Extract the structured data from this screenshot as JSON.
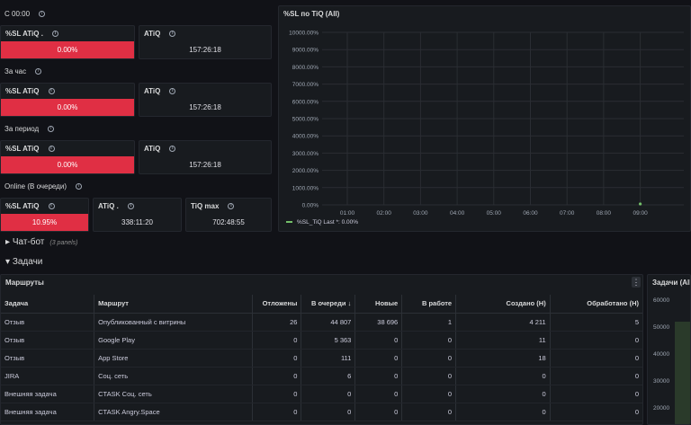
{
  "sections": {
    "s00": "С 00:00",
    "hour": "За час",
    "period": "За период",
    "online": "Online (В очереди)"
  },
  "stats": {
    "s00_sl": {
      "title": "%SL ATiQ .",
      "value": "0.00%"
    },
    "s00_atiq": {
      "title": "ATiQ",
      "value": "157:26:18"
    },
    "hour_sl": {
      "title": "%SL ATiQ",
      "value": "0.00%"
    },
    "hour_atiq": {
      "title": "ATiQ",
      "value": "157:26:18"
    },
    "period_sl": {
      "title": "%SL ATiQ",
      "value": "0.00%"
    },
    "period_atiq": {
      "title": "ATiQ",
      "value": "157:26:18"
    },
    "online_sl": {
      "title": "%SL ATiQ",
      "value": "10.95%"
    },
    "online_atiq": {
      "title": "ATiQ .",
      "value": "338:11:20"
    },
    "online_tiqmax": {
      "title": "TiQ max",
      "value": "702:48:55"
    }
  },
  "rows": {
    "chatbot": "Чат-бот",
    "chatbot_sub": "(3 panels)",
    "tasks": "Задачи"
  },
  "chart_data": {
    "type": "line",
    "title": "%SL по TiQ (All)",
    "x": [
      "01:00",
      "02:00",
      "03:00",
      "04:00",
      "05:00",
      "06:00",
      "07:00",
      "08:00",
      "09:00"
    ],
    "y_ticks": [
      "10000.00%",
      "9000.00%",
      "8000.00%",
      "7000.00%",
      "6000.00%",
      "5000.00%",
      "4000.00%",
      "3000.00%",
      "2000.00%",
      "1000.00%",
      "0.00%"
    ],
    "ylim": [
      0,
      10000
    ],
    "series": [
      {
        "name": "%SL_TiQ",
        "points": [
          {
            "x": "09:00",
            "y": 0
          }
        ],
        "color": "#73bf69"
      }
    ],
    "legend": "%SL_TiQ   Last *: 0.00%",
    "grid": true,
    "legend_position": "bottom-left"
  },
  "table": {
    "title": "Маршруты",
    "menu_icon": "⋮",
    "headers": [
      "Задача",
      "Маршрут",
      "Отложены",
      "В очереди ↓",
      "Новые",
      "В работе",
      "Создано (Н)",
      "Обработано (Н)"
    ],
    "rows": [
      [
        "Отзыв",
        "Опубликованный с витрины",
        "26",
        "44 807",
        "38 696",
        "1",
        "4 211",
        "5"
      ],
      [
        "Отзыв",
        "Google Play",
        "0",
        "5 363",
        "0",
        "0",
        "11",
        "0"
      ],
      [
        "Отзыв",
        "App Store",
        "0",
        "111",
        "0",
        "0",
        "18",
        "0"
      ],
      [
        "JIRA",
        "Соц. сеть",
        "0",
        "6",
        "0",
        "0",
        "0",
        "0"
      ],
      [
        "Внешняя задача",
        "CTASK Соц. сеть",
        "0",
        "0",
        "0",
        "0",
        "0",
        "0"
      ],
      [
        "Внешняя задача",
        "CTASK Angry.Space",
        "0",
        "0",
        "0",
        "0",
        "0",
        "0"
      ]
    ]
  },
  "side_panel": {
    "title": "Задачи (All",
    "y_ticks": [
      "60000",
      "50000",
      "40000",
      "30000",
      "20000"
    ]
  },
  "colors": {
    "red": "#e02f44",
    "green": "#73bf69",
    "panel": "#181b1f",
    "bg": "#111217"
  }
}
